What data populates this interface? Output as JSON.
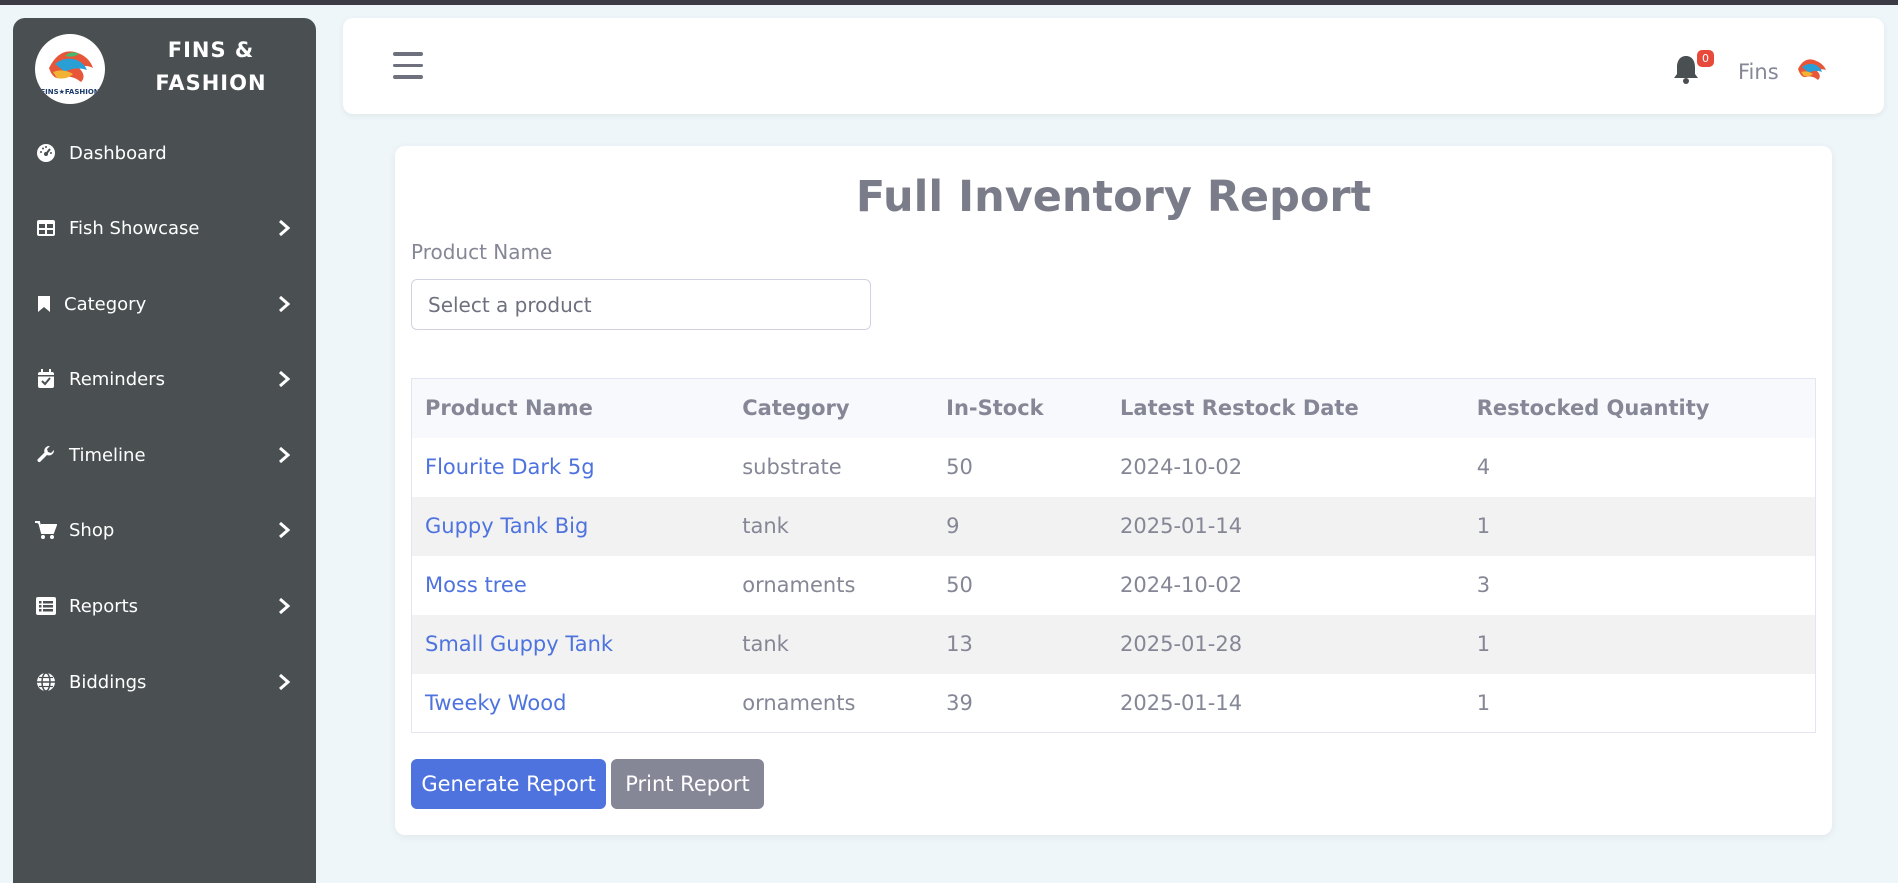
{
  "brand": {
    "title_line1": "FINS &",
    "title_line2": "FASHION",
    "logo_text": "FINS★FASHION"
  },
  "sidebar": {
    "items": [
      {
        "label": "Dashboard",
        "icon": "dashboard-gauge-icon",
        "has_submenu": false
      },
      {
        "label": "Fish Showcase",
        "icon": "table-grid-icon",
        "has_submenu": true
      },
      {
        "label": "Category",
        "icon": "bookmark-icon",
        "has_submenu": true
      },
      {
        "label": "Reminders",
        "icon": "calendar-check-icon",
        "has_submenu": true
      },
      {
        "label": "Timeline",
        "icon": "wrench-icon",
        "has_submenu": true
      },
      {
        "label": "Shop",
        "icon": "shopping-cart-icon",
        "has_submenu": true
      },
      {
        "label": "Reports",
        "icon": "list-alt-icon",
        "has_submenu": true
      },
      {
        "label": "Biddings",
        "icon": "globe-icon",
        "has_submenu": true
      }
    ]
  },
  "topbar": {
    "notification_count": "0",
    "user_name": "Fins"
  },
  "report": {
    "title": "Full Inventory Report",
    "filter_label": "Product Name",
    "select_placeholder": "Select a product",
    "columns": [
      "Product Name",
      "Category",
      "In-Stock",
      "Latest Restock Date",
      "Restocked Quantity"
    ],
    "rows": [
      [
        "Flourite Dark 5g",
        "substrate",
        "50",
        "2024-10-02",
        "4"
      ],
      [
        "Guppy Tank Big",
        "tank",
        "9",
        "2025-01-14",
        "1"
      ],
      [
        "Moss tree",
        "ornaments",
        "50",
        "2024-10-02",
        "3"
      ],
      [
        "Small Guppy Tank",
        "tank",
        "13",
        "2025-01-28",
        "1"
      ],
      [
        "Tweeky Wood",
        "ornaments",
        "39",
        "2025-01-14",
        "1"
      ]
    ],
    "generate_label": "Generate Report",
    "print_label": "Print Report"
  },
  "colors": {
    "sidebar_bg": "#4a4f52",
    "primary": "#4e73df",
    "secondary": "#858796",
    "badge": "#e74a3b",
    "page_bg": "#eef6f9"
  }
}
